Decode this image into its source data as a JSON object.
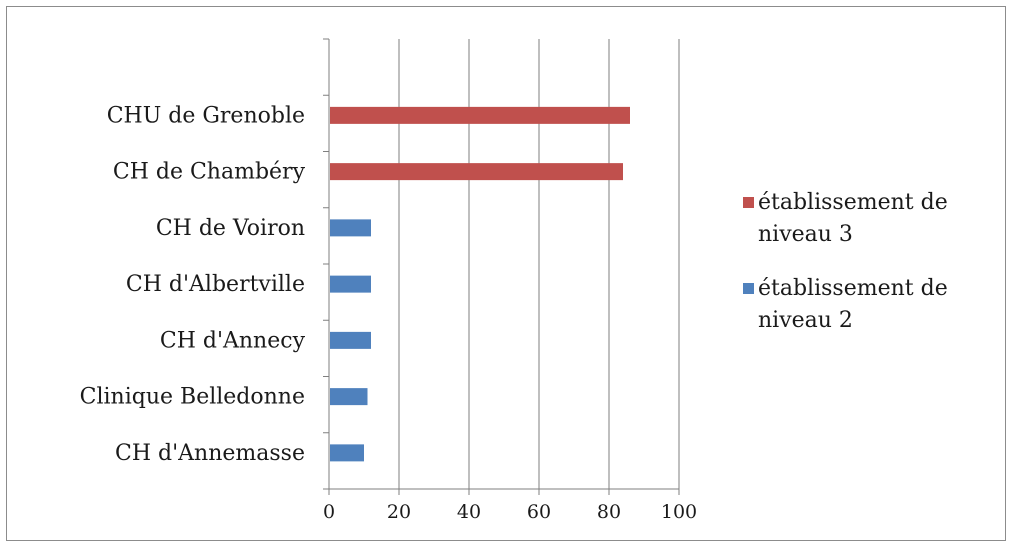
{
  "chart_data": {
    "type": "bar",
    "orientation": "horizontal",
    "categories": [
      "CHU de Grenoble",
      "CH de Chambéry",
      "CH de Voiron",
      "CH d'Albertville",
      "CH d'Annecy",
      "Clinique Belledonne",
      "CH d'Annemasse"
    ],
    "series": [
      {
        "name": "établissement de niveau 3",
        "legend_lines": [
          "établissement de",
          "niveau 3"
        ],
        "color": "#c0504d",
        "values": [
          86,
          84,
          null,
          null,
          null,
          null,
          null
        ]
      },
      {
        "name": "établissement de niveau 2",
        "legend_lines": [
          "établissement de",
          "niveau 2"
        ],
        "color": "#4f81bd",
        "values": [
          null,
          null,
          12,
          12,
          12,
          11,
          10
        ]
      }
    ],
    "xlim": [
      0,
      100
    ],
    "xticks": [
      "0",
      "20",
      "40",
      "60",
      "80",
      "100"
    ],
    "grid": "vertical",
    "legend": "right",
    "title": "",
    "xlabel": "",
    "ylabel": ""
  },
  "colors": {
    "gridline": "#7f7f7f",
    "axis": "#7f7f7f",
    "frame": "#8c8c8c",
    "text": "#1a1a1a"
  }
}
